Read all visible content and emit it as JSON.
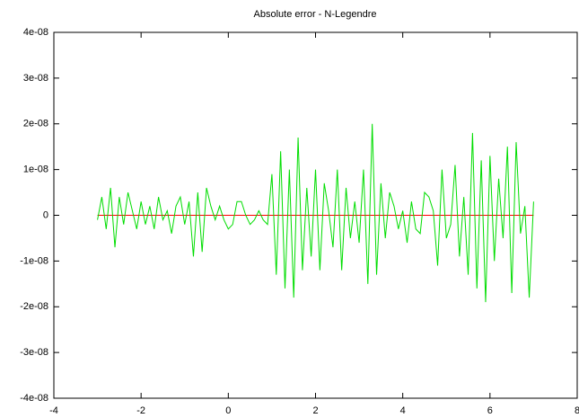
{
  "chart_data": {
    "type": "line",
    "title": "Absolute error - N-Legendre",
    "series": [
      {
        "color": "#00dd00",
        "x": [
          -3.0,
          -2.9,
          -2.8,
          -2.7,
          -2.6,
          -2.5,
          -2.4,
          -2.3,
          -2.2,
          -2.1,
          -2.0,
          -1.9,
          -1.8,
          -1.7,
          -1.6,
          -1.5,
          -1.4,
          -1.3,
          -1.2,
          -1.1,
          -1.0,
          -0.9,
          -0.8,
          -0.7,
          -0.6,
          -0.5,
          -0.4,
          -0.3,
          -0.2,
          -0.1,
          0.0,
          0.1,
          0.2,
          0.3,
          0.4,
          0.5,
          0.6,
          0.7,
          0.8,
          0.9,
          1.0,
          1.1,
          1.2,
          1.3,
          1.4,
          1.5,
          1.6,
          1.7,
          1.8,
          1.9,
          2.0,
          2.1,
          2.2,
          2.3,
          2.4,
          2.5,
          2.6,
          2.7,
          2.8,
          2.9,
          3.0,
          3.1,
          3.2,
          3.3,
          3.4,
          3.5,
          3.6,
          3.7,
          3.8,
          3.9,
          4.0,
          4.1,
          4.2,
          4.3,
          4.4,
          4.5,
          4.6,
          4.7,
          4.8,
          4.9,
          5.0,
          5.1,
          5.2,
          5.3,
          5.4,
          5.5,
          5.6,
          5.7,
          5.8,
          5.9,
          6.0,
          6.1,
          6.2,
          6.3,
          6.4,
          6.5,
          6.6,
          6.7,
          6.8,
          6.9,
          7.0
        ],
        "values": [
          -1e-09,
          4e-09,
          -3e-09,
          6e-09,
          -7e-09,
          4e-09,
          -2e-09,
          5e-09,
          1e-09,
          -3e-09,
          3e-09,
          -2e-09,
          2e-09,
          -3e-09,
          4e-09,
          -1e-09,
          1e-09,
          -4e-09,
          2e-09,
          4e-09,
          -2e-09,
          3e-09,
          -9e-09,
          5e-09,
          -8e-09,
          6e-09,
          2e-09,
          -1e-09,
          2e-09,
          -1e-09,
          -3e-09,
          -2e-09,
          3e-09,
          3e-09,
          0,
          -2e-09,
          -1e-09,
          1e-09,
          -1e-09,
          -2e-09,
          9e-09,
          -1.3e-08,
          1.4e-08,
          -1.6e-08,
          1e-08,
          -1.8e-08,
          1.7e-08,
          -1.2e-08,
          6e-09,
          -9e-09,
          1e-08,
          -1.2e-08,
          7e-09,
          1e-09,
          -7e-09,
          1e-08,
          -1.2e-08,
          6e-09,
          -5e-09,
          3e-09,
          -6e-09,
          1e-08,
          -1.5e-08,
          2e-08,
          -1.3e-08,
          7e-09,
          -5e-09,
          5e-09,
          2e-09,
          -3e-09,
          1e-09,
          -6e-09,
          3e-09,
          -3e-09,
          -4e-09,
          5e-09,
          4e-09,
          1e-09,
          -1.1e-08,
          1e-08,
          -5e-09,
          -2e-09,
          1.1e-08,
          -9e-09,
          4e-09,
          -1.3e-08,
          1.8e-08,
          -1.6e-08,
          1.2e-08,
          -1.9e-08,
          1.3e-08,
          -1e-08,
          8e-09,
          -5e-09,
          1.5e-08,
          -1.7e-08,
          1.6e-08,
          -4e-09,
          2e-09,
          -1.8e-08,
          3e-09
        ]
      },
      {
        "color": "#ff0000",
        "x": [
          -3,
          7
        ],
        "values": [
          0,
          0
        ]
      }
    ],
    "xlim": [
      -4,
      8
    ],
    "xticks": [
      -4,
      -2,
      0,
      2,
      4,
      6,
      8
    ],
    "ylim": [
      -4e-08,
      4e-08
    ],
    "yticks": [
      {
        "value": -4e-08,
        "label": "-4e-08"
      },
      {
        "value": -3e-08,
        "label": "-3e-08"
      },
      {
        "value": -2e-08,
        "label": "-2e-08"
      },
      {
        "value": -1e-08,
        "label": "-1e-08"
      },
      0,
      {
        "value": 1e-08,
        "label": "1e-08"
      },
      {
        "value": 2e-08,
        "label": "2e-08"
      },
      {
        "value": 3e-08,
        "label": "3e-08"
      },
      {
        "value": 4e-08,
        "label": "4e-08"
      }
    ]
  }
}
